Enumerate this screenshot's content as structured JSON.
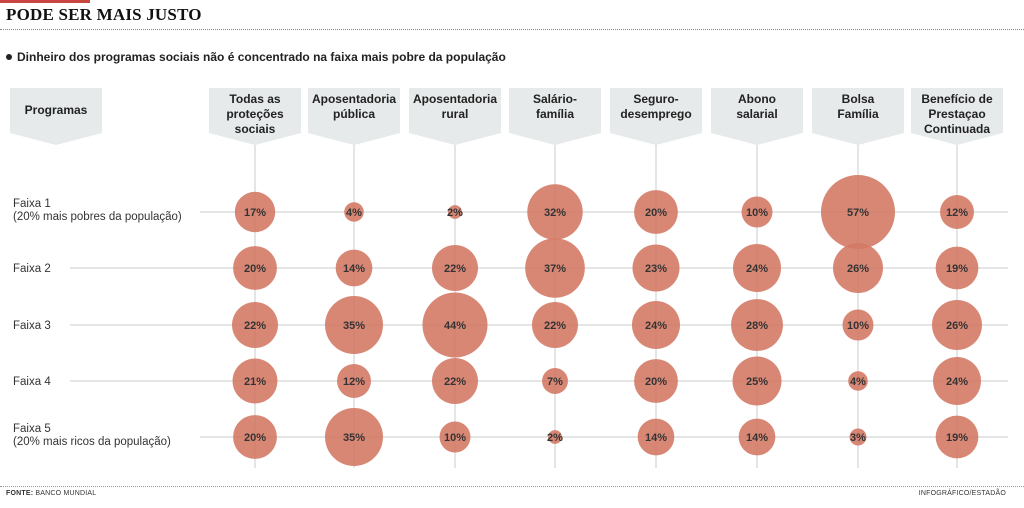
{
  "header": {
    "title": "PODE SER MAIS JUSTO",
    "subtitle": "Dinheiro dos programas sociais não é concentrado na faixa mais pobre da população"
  },
  "footer": {
    "source_label": "FONTE:",
    "source_value": "BANCO MUNDIAL",
    "credit": "INFOGRÁFICO/ESTADÃO"
  },
  "colors": {
    "bubble": "#d47a66",
    "header_box": "#e6eaea",
    "line": "#c9cccc"
  },
  "chart_data": {
    "type": "bubble-grid",
    "title": "PODE SER MAIS JUSTO",
    "row_header": "Programas",
    "columns": [
      [
        "Todas as",
        "proteções",
        "sociais"
      ],
      [
        "Aposentadoria",
        "pública"
      ],
      [
        "Aposentadoria",
        "rural"
      ],
      [
        "Salário-",
        "família"
      ],
      [
        "Seguro-",
        "desemprego"
      ],
      [
        "Abono",
        "salarial"
      ],
      [
        "Bolsa",
        "Família"
      ],
      [
        "Benefício de",
        "Prestaçao",
        "Continuada"
      ]
    ],
    "rows": [
      [
        "Faixa 1",
        "(20% mais pobres da população)"
      ],
      [
        "Faixa 2"
      ],
      [
        "Faixa 3"
      ],
      [
        "Faixa 4"
      ],
      [
        "Faixa 5",
        "(20% mais ricos da população)"
      ]
    ],
    "values": [
      [
        17,
        4,
        2,
        32,
        20,
        10,
        57,
        12
      ],
      [
        20,
        14,
        22,
        37,
        23,
        24,
        26,
        19
      ],
      [
        22,
        35,
        44,
        22,
        24,
        28,
        10,
        26
      ],
      [
        21,
        12,
        22,
        7,
        20,
        25,
        4,
        24
      ],
      [
        20,
        35,
        10,
        2,
        14,
        14,
        3,
        19
      ]
    ],
    "unit": "%"
  }
}
